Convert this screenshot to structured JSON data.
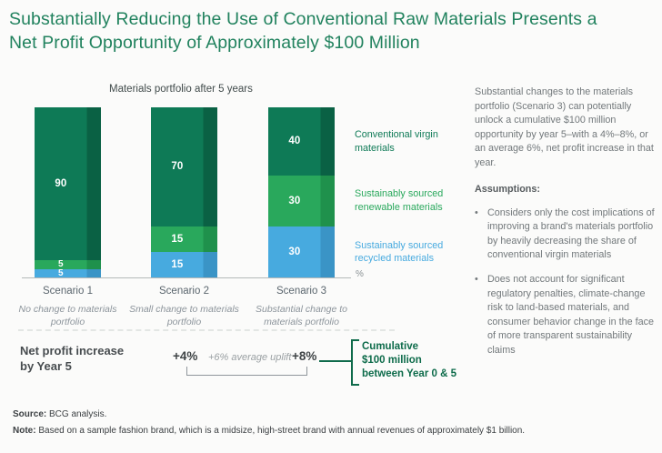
{
  "title": {
    "line1": "Substantially Reducing the Use of Conventional Raw Materials Presents a",
    "line2": "Net Profit Opportunity of Approximately $100 Million"
  },
  "chart_data": {
    "type": "bar",
    "variant": "stacked-100-percent",
    "title": "Materials portfolio after 5 years",
    "unit_label": "%",
    "total": 100,
    "grid": false,
    "legend_position": "right",
    "value_labels": "inside-white",
    "stack_order": "top-to-bottom",
    "categories": [
      "Scenario 1",
      "Scenario 2",
      "Scenario 3"
    ],
    "category_subtitles": [
      "No change to materials portfolio",
      "Small change to materials portfolio",
      "Substantial change to materials portfolio"
    ],
    "series": [
      {
        "name": "Conventional virgin materials",
        "values": [
          90,
          70,
          40
        ],
        "color": "#0e7a56",
        "shade_color": "#0a6144"
      },
      {
        "name": "Sustainably sourced renewable materials",
        "values": [
          5,
          15,
          30
        ],
        "color": "#29a85c",
        "shade_color": "#1f914c"
      },
      {
        "name": "Sustainably sourced recycled materials",
        "values": [
          5,
          15,
          30
        ],
        "color": "#47aadf",
        "shade_color": "#3a94c6"
      }
    ]
  },
  "footer_row": {
    "label": "Net profit increase by Year 5",
    "values": [
      {
        "text": "+4%"
      },
      {
        "text": "+6% average uplift"
      },
      {
        "text": "+8%"
      }
    ],
    "callout": {
      "lines": [
        "Cumulative",
        "$100 million",
        "between Year 0 & 5"
      ]
    }
  },
  "side_panel": {
    "paragraph": "Substantial changes to the materials portfolio (Scenario 3) can potentially unlock a cumulative $100 million opportunity by year 5–with a 4%–8%, or an average 6%, net profit increase in that year.",
    "assumptions_label": "Assumptions:",
    "bullets": [
      "Considers only the cost implications of improving a brand's materials portfolio by heavily decreasing the share of conventional virgin materials",
      "Does not account for significant regulatory penalties, climate-change risk to land-based materials, and consumer behavior change in the face of more transparent sustainability claims"
    ]
  },
  "source": {
    "prefix": "Source:",
    "text": " BCG analysis."
  },
  "note": {
    "prefix": "Note:",
    "text": " Based on a sample fashion brand, which is a midsize, high-street brand with annual revenues of approximately $1 billion."
  },
  "colors": {
    "title_green": "#21825e",
    "callout_green": "#0d6b4a",
    "axis_gray": "#b4b9b9"
  }
}
